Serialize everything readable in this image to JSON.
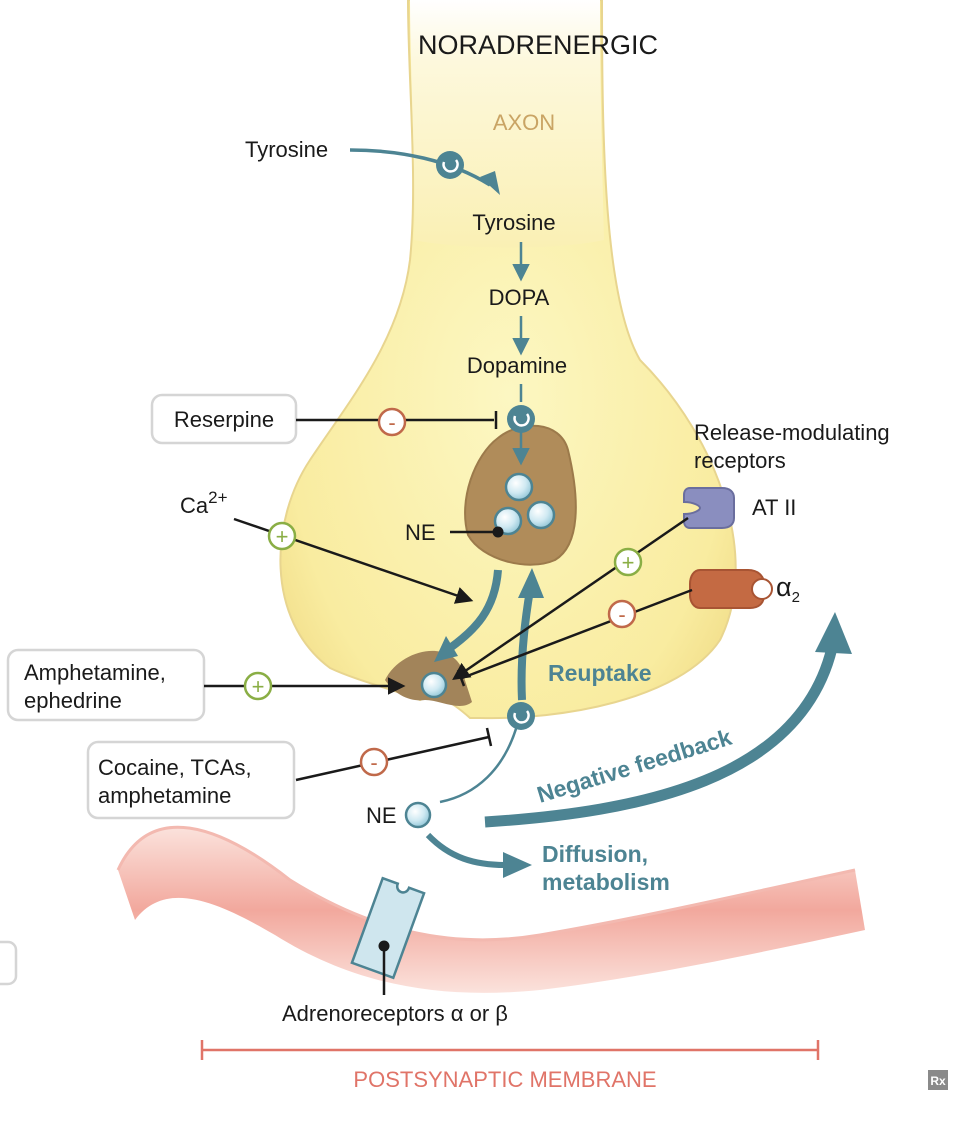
{
  "title": "NORADRENERGIC",
  "axon_label": "AXON",
  "pathway": {
    "tyrosine_outside": "Tyrosine",
    "tyrosine_inside": "Tyrosine",
    "dopa": "DOPA",
    "dopamine": "Dopamine"
  },
  "drugs": {
    "reserpine": "Reserpine",
    "amphetamine_ephedrine": [
      "Amphetamine,",
      "ephedrine"
    ],
    "cocaine_tcas": [
      "Cocaine, TCAs,",
      "amphetamine"
    ]
  },
  "ions": {
    "calcium": "Ca",
    "calcium_sup": "2+"
  },
  "ne_vesicle_label": "NE",
  "ne_cleft_label": "NE",
  "release_modulating": [
    "Release-modulating",
    "receptors"
  ],
  "receptor_at2": "AT II",
  "receptor_alpha2": "α",
  "receptor_alpha2_sub": "2",
  "reuptake": "Reuptake",
  "negative_feedback": "Negative feedback",
  "diffusion": [
    "Diffusion,",
    "metabolism"
  ],
  "adrenoreceptors": "Adrenoreceptors α or β",
  "postsynaptic": "POSTSYNAPTIC MEMBRANE",
  "signs": {
    "inhibit": "-",
    "stimulate": "+"
  },
  "rx_mark": "Rx",
  "colors": {
    "teal": "#4d8493",
    "inhibit": "#c0694a",
    "stimulate": "#8aae45",
    "axon_tan": "#d2b67a",
    "membrane": "#e98b80",
    "postsynaptic_text": "#e07468"
  }
}
